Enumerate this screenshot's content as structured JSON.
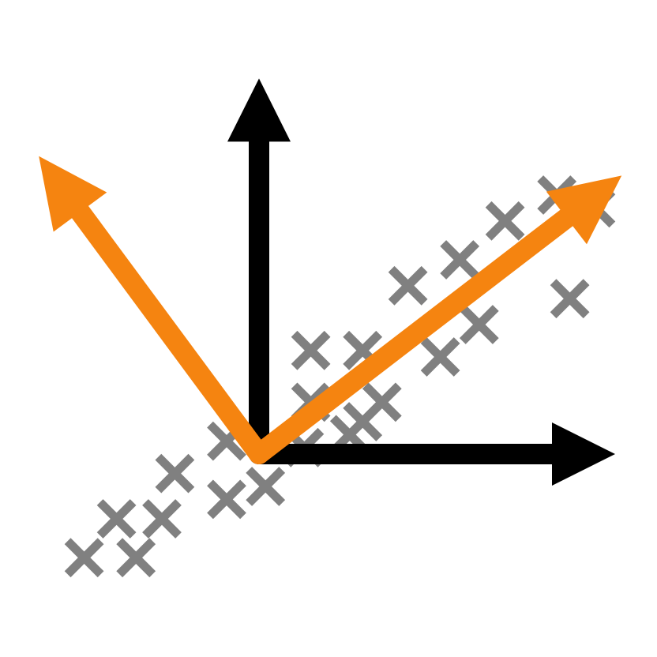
{
  "colors": {
    "background": "#ffffff",
    "axes": "#000000",
    "principal_components": "#f58410",
    "data_points": "#808080"
  },
  "chart_data": {
    "type": "scatter",
    "title": "",
    "xlabel": "",
    "ylabel": "",
    "grid": false,
    "points": [
      [
        -2.7,
        -1.6
      ],
      [
        -1.9,
        -1.6
      ],
      [
        -2.2,
        -1.0
      ],
      [
        -1.5,
        -1.0
      ],
      [
        -1.3,
        -0.3
      ],
      [
        -0.5,
        -0.7
      ],
      [
        0.1,
        -0.5
      ],
      [
        -0.5,
        0.2
      ],
      [
        0.7,
        0.1
      ],
      [
        1.4,
        0.3
      ],
      [
        1.6,
        0.5
      ],
      [
        0.8,
        0.8
      ],
      [
        1.9,
        0.8
      ],
      [
        0.8,
        1.6
      ],
      [
        1.6,
        1.6
      ],
      [
        2.8,
        1.5
      ],
      [
        3.4,
        2.0
      ],
      [
        4.8,
        2.4
      ],
      [
        2.3,
        2.6
      ],
      [
        3.1,
        3.0
      ],
      [
        3.8,
        3.6
      ],
      [
        4.6,
        4.0
      ],
      [
        5.2,
        3.8
      ]
    ],
    "axes_vectors": [
      {
        "name": "x-axis",
        "dx": 5.5,
        "dy": 0
      },
      {
        "name": "y-axis",
        "dx": 0,
        "dy": 5.8
      }
    ],
    "component_vectors": [
      {
        "name": "first-principal-component",
        "dx": 5.6,
        "dy": 4.3
      },
      {
        "name": "second-principal-component",
        "dx": -3.4,
        "dy": 4.6
      }
    ]
  }
}
